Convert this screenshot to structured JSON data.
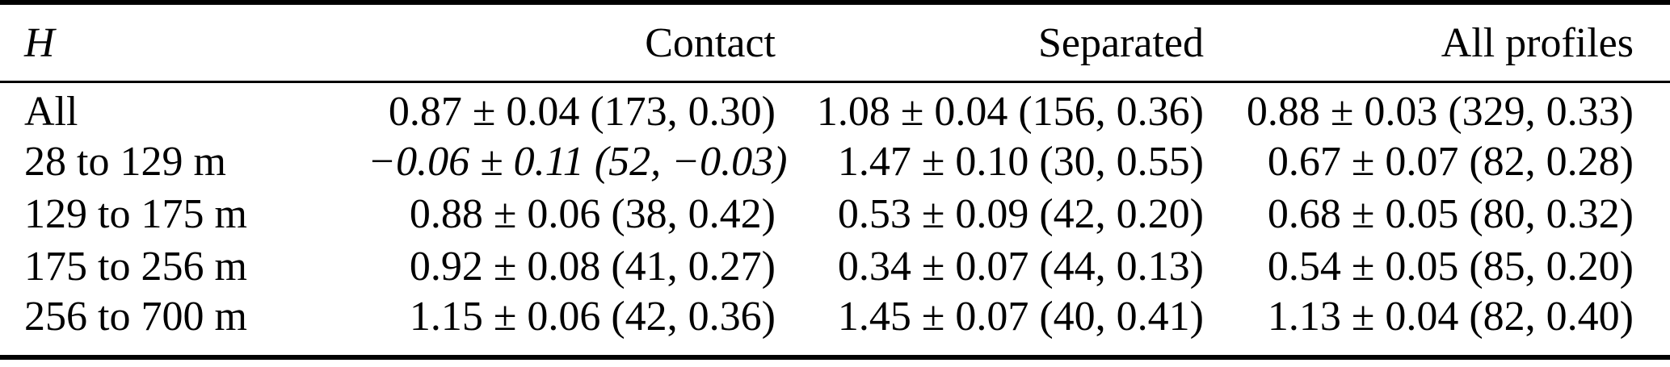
{
  "table": {
    "columns": {
      "h": "H",
      "contact": "Contact",
      "separated": "Separated",
      "all_profiles": "All profiles"
    },
    "rows": [
      {
        "h": "All",
        "contact": "0.87 ± 0.04 (173, 0.30)",
        "separated": "1.08 ± 0.04 (156, 0.36)",
        "all_profiles": "0.88 ± 0.03 (329, 0.33)"
      },
      {
        "h": "28 to 129 m",
        "contact": "−0.06 ± 0.11 (52, −0.03)",
        "separated": "1.47 ± 0.10 (30, 0.55)",
        "all_profiles": "0.67 ± 0.07 (82, 0.28)"
      },
      {
        "h": "129 to 175 m",
        "contact": "0.88 ± 0.06 (38, 0.42)",
        "separated": "0.53 ± 0.09 (42, 0.20)",
        "all_profiles": "0.68 ± 0.05 (80, 0.32)"
      },
      {
        "h": "175 to 256 m",
        "contact": "0.92 ± 0.08 (41, 0.27)",
        "separated": "0.34 ± 0.07 (44, 0.13)",
        "all_profiles": "0.54 ± 0.05 (85, 0.20)"
      },
      {
        "h": "256 to 700 m",
        "contact": "1.15 ± 0.06 (42, 0.36)",
        "separated": "1.45 ± 0.07 (40, 0.41)",
        "all_profiles": "1.13 ± 0.04 (82, 0.40)"
      }
    ]
  },
  "colors": {
    "text": "#000000",
    "background": "#ffffff",
    "rule": "#000000"
  }
}
